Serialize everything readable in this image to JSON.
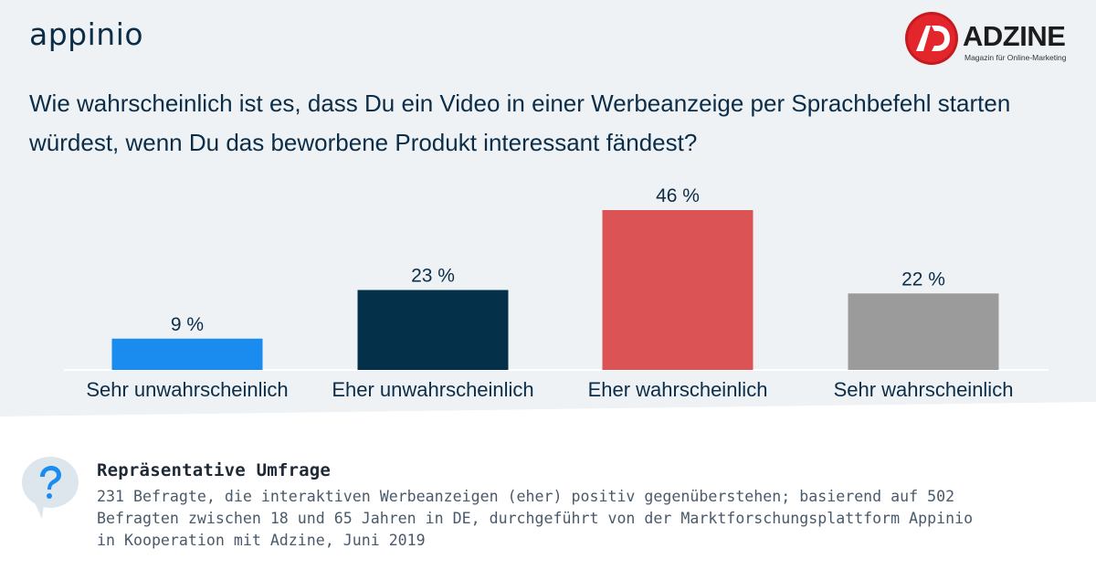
{
  "brand": {
    "left_logo": "appinio",
    "right_logo": "ADZINE",
    "right_tagline": "Magazin für Online-Marketing"
  },
  "colors": {
    "background": "#eef2f5",
    "title": "#0c2d48",
    "axis": "#ffffff"
  },
  "chart_data": {
    "type": "bar",
    "title": "Wie wahrscheinlich ist es, dass Du ein Video in einer Werbeanzeige per Sprachbefehl starten würdest, wenn Du das beworbene Produkt interessant fändest?",
    "categories": [
      "Sehr unwahrscheinlich",
      "Eher unwahrscheinlich",
      "Eher wahrscheinlich",
      "Sehr wahrscheinlich"
    ],
    "values": [
      9,
      23,
      46,
      22
    ],
    "value_labels": [
      "9 %",
      "23 %",
      "46 %",
      "22 %"
    ],
    "bar_colors": [
      "#1a8cf0",
      "#05304a",
      "#dc5356",
      "#9b9b9b"
    ],
    "xlabel": "",
    "ylabel": "",
    "ylim": [
      0,
      46
    ],
    "grid": false,
    "legend": "none"
  },
  "footer": {
    "icon": "question-bubble-icon",
    "title": "Repräsentative Umfrage",
    "lines": [
      "231 Befragte, die interaktiven Werbeanzeigen (eher) positiv gegenüberstehen; basierend auf 502",
      "Befragten zwischen 18 und 65 Jahren in DE, durchgeführt von der Marktforschungsplattform Appinio",
      "in Kooperation mit Adzine, Juni 2019"
    ]
  }
}
